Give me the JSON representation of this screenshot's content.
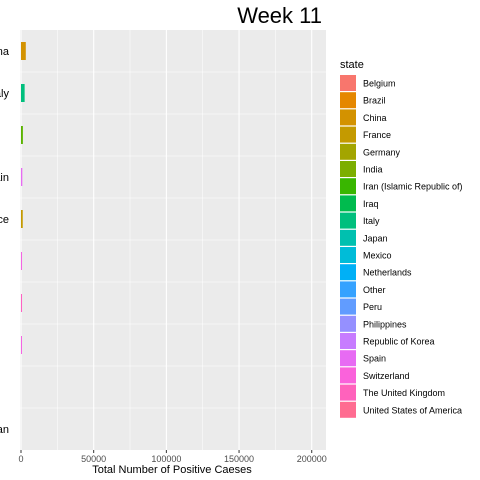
{
  "chart_data": {
    "type": "bar",
    "orientation": "horizontal",
    "title": "Week 11",
    "xlabel": "Total Number of Positive Caeses",
    "xlim": [
      0,
      205000
    ],
    "xticks": [
      0,
      50000,
      100000,
      150000,
      200000
    ],
    "xtick_labels": [
      "0",
      "50000",
      "100000",
      "150000",
      "200000"
    ],
    "grid": true,
    "bars": [
      {
        "label": "ina",
        "value": 3300,
        "color": "#D39200"
      },
      {
        "label": "Italy",
        "value": 2500,
        "color": "#00BF7D"
      },
      {
        "label": "",
        "value": 1300,
        "color": "#5BB300"
      },
      {
        "label": "ain",
        "value": 900,
        "color": "#E76BF3"
      },
      {
        "label": "ce",
        "value": 1200,
        "color": "#C49A00"
      },
      {
        "label": "",
        "value": 700,
        "color": "#F564E3"
      },
      {
        "label": "",
        "value": 700,
        "color": "#FF61C3"
      },
      {
        "label": "",
        "value": 600,
        "color": "#F564E3"
      },
      {
        "label": "",
        "value": 0,
        "color": "#00C08B"
      },
      {
        "label": "an",
        "value": 0,
        "color": "#00BFC4"
      }
    ],
    "legend": {
      "title": "state",
      "placement": "right",
      "items": [
        {
          "name": "Belgium",
          "color": "#F8766D"
        },
        {
          "name": "Brazil",
          "color": "#E58700"
        },
        {
          "name": "China",
          "color": "#D39200"
        },
        {
          "name": "France",
          "color": "#C49A00"
        },
        {
          "name": "Germany",
          "color": "#A3A500"
        },
        {
          "name": "India",
          "color": "#7CAE00"
        },
        {
          "name": "Iran (Islamic Republic of)",
          "color": "#39B600"
        },
        {
          "name": "Iraq",
          "color": "#00BB4E"
        },
        {
          "name": "Italy",
          "color": "#00BF7D"
        },
        {
          "name": "Japan",
          "color": "#00C0AF"
        },
        {
          "name": "Mexico",
          "color": "#00BCD8"
        },
        {
          "name": "Netherlands",
          "color": "#00B0F6"
        },
        {
          "name": "Other",
          "color": "#35A2FF"
        },
        {
          "name": "Peru",
          "color": "#619CFF"
        },
        {
          "name": "Philippines",
          "color": "#9590FF"
        },
        {
          "name": "Republic of Korea",
          "color": "#C77CFF"
        },
        {
          "name": "Spain",
          "color": "#E76BF3"
        },
        {
          "name": "Switzerland",
          "color": "#FA62DB"
        },
        {
          "name": "The United Kingdom",
          "color": "#FF62BC"
        },
        {
          "name": "United States of America",
          "color": "#FF6C91"
        }
      ]
    }
  }
}
